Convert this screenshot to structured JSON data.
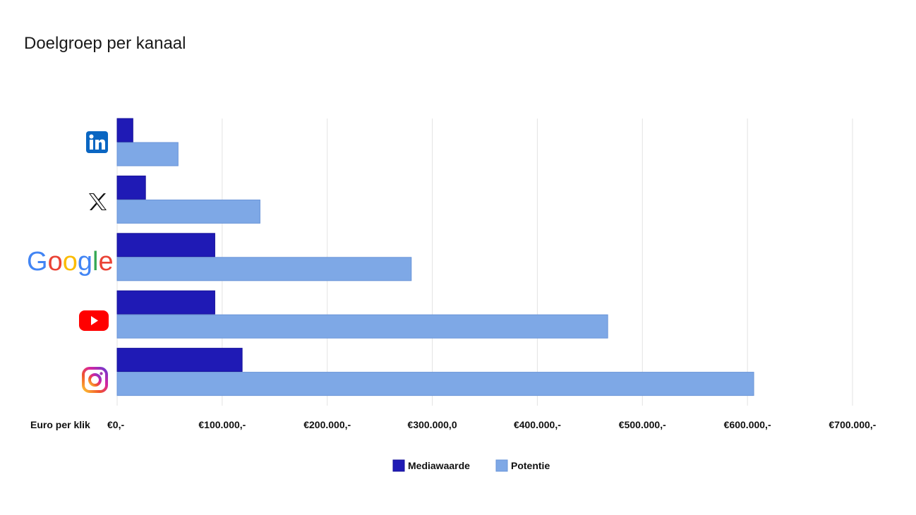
{
  "title": "Doelgroep per kanaal",
  "chart_data": {
    "type": "bar",
    "orientation": "horizontal",
    "title": "Doelgroep per kanaal",
    "xlabel": "Euro per klik",
    "categories": [
      "LinkedIn",
      "X",
      "Google",
      "YouTube",
      "Instagram"
    ],
    "category_icons": [
      "linkedin-icon",
      "x-icon",
      "google-logo",
      "youtube-icon",
      "instagram-icon"
    ],
    "series": [
      {
        "name": "Mediawaarde",
        "color": "#1f1ab5",
        "values": [
          15000,
          27000,
          93000,
          93000,
          119000
        ]
      },
      {
        "name": "Potentie",
        "color": "#7ea8e6",
        "values": [
          58000,
          136000,
          280000,
          467000,
          606000
        ]
      }
    ],
    "xlim": [
      0,
      700000
    ],
    "xticks": [
      0,
      100000,
      200000,
      300000,
      400000,
      500000,
      600000,
      700000
    ],
    "xtick_labels": [
      "€0,-",
      "€100.000,-",
      "€200.000,-",
      "€300.000,0",
      "€400.000,-",
      "€500.000,-",
      "€600.000,-",
      "€700.000,-"
    ],
    "grid": "vertical",
    "legend": "bottom-center"
  }
}
